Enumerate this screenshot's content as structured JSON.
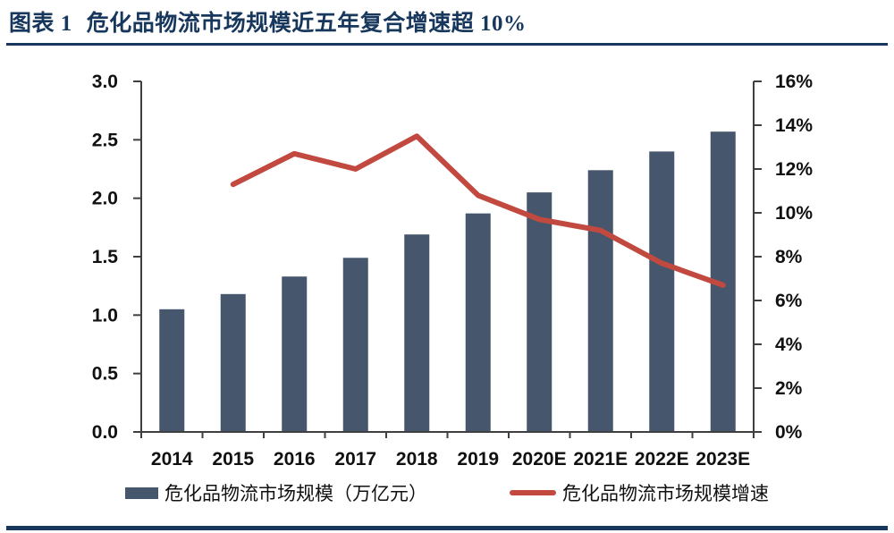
{
  "page": {
    "background": "#FFFFFF",
    "accent_navy": "#17375D"
  },
  "header": {
    "figure_label": "图表 1",
    "title": "危化品物流市场规模近五年复合增速超 10%"
  },
  "chart_data": {
    "type": "bar+line combo",
    "categories": [
      "2014",
      "2015",
      "2016",
      "2017",
      "2018",
      "2019",
      "2020E",
      "2021E",
      "2022E",
      "2023E"
    ],
    "series": [
      {
        "name": "危化品物流市场规模（万亿元）",
        "type": "bar",
        "axis": "left",
        "color": "#46566C",
        "values": [
          1.05,
          1.18,
          1.33,
          1.49,
          1.69,
          1.87,
          2.05,
          2.24,
          2.4,
          2.57
        ]
      },
      {
        "name": "危化品物流市场规模增速",
        "type": "line",
        "axis": "right",
        "color": "#C2493F",
        "values": [
          null,
          11.3,
          12.7,
          12.0,
          13.5,
          10.8,
          9.7,
          9.2,
          7.7,
          6.7
        ]
      }
    ],
    "left_axis": {
      "min": 0,
      "max": 3,
      "step": 0.5,
      "tick_labels": [
        "0.0",
        "0.5",
        "1.0",
        "1.5",
        "2.0",
        "2.5",
        "3.0"
      ]
    },
    "right_axis": {
      "min": 0,
      "max": 16,
      "step": 2,
      "suffix": "%",
      "tick_labels": [
        "0%",
        "2%",
        "4%",
        "6%",
        "8%",
        "10%",
        "12%",
        "14%",
        "16%"
      ]
    },
    "grid": false,
    "legend_position": "bottom"
  }
}
